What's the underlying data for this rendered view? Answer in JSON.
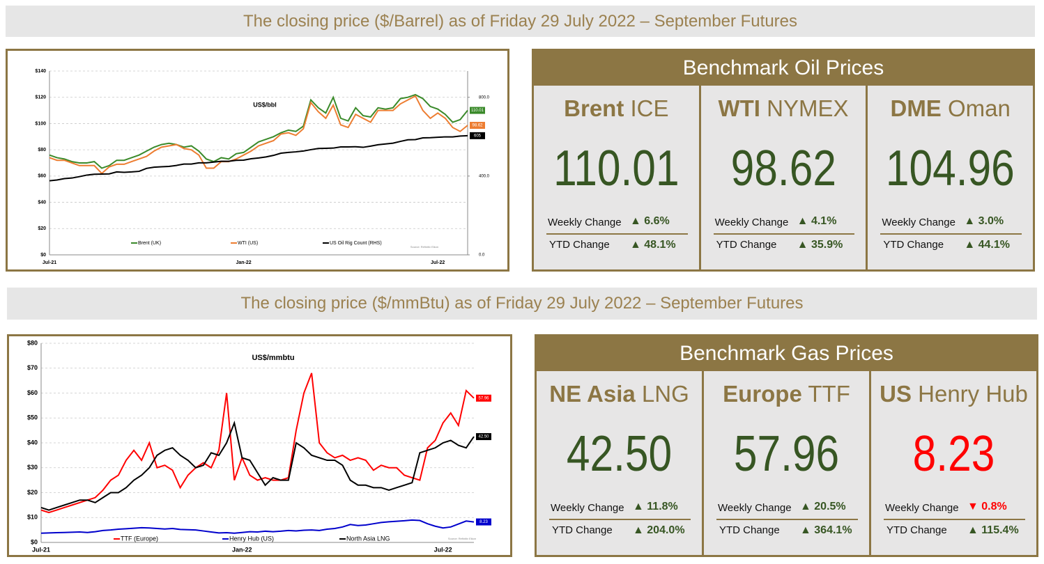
{
  "oil_section": {
    "heading": "The closing price ($/Barrel) as of Friday 29 July 2022 – September Futures",
    "panel": {
      "title": "Benchmark Oil Prices",
      "cells": [
        {
          "name_bold": "Brent",
          "name_rest": "ICE",
          "price": "110.01",
          "price_color": "#375623",
          "weekly_label": "Weekly Change",
          "weekly_change": "▲ 6.6%",
          "weekly_color": "#375623",
          "ytd_label": "YTD Change",
          "ytd_change": "▲ 48.1%",
          "ytd_color": "#375623"
        },
        {
          "name_bold": "WTI",
          "name_rest": "NYMEX",
          "price": "98.62",
          "price_color": "#375623",
          "weekly_label": "Weekly Change",
          "weekly_change": "▲ 4.1%",
          "weekly_color": "#375623",
          "ytd_label": "YTD Change",
          "ytd_change": "▲ 35.9%",
          "ytd_color": "#375623"
        },
        {
          "name_bold": "DME",
          "name_rest": "Oman",
          "price": "104.96",
          "price_color": "#375623",
          "weekly_label": "Weekly Change",
          "weekly_change": "▲ 3.0%",
          "weekly_color": "#375623",
          "ytd_label": "YTD Change",
          "ytd_change": "▲ 44.1%",
          "ytd_color": "#375623"
        }
      ]
    }
  },
  "gas_section": {
    "heading": "The closing price ($/mmBtu) as of Friday 29 July 2022 – September Futures",
    "panel": {
      "title": "Benchmark Gas Prices",
      "cells": [
        {
          "name_bold": "NE Asia",
          "name_rest": "LNG",
          "price": "42.50",
          "price_color": "#375623",
          "weekly_label": "Weekly Change",
          "weekly_change": "▲ 11.8%",
          "weekly_color": "#375623",
          "ytd_label": "YTD Change",
          "ytd_change": "▲ 204.0%",
          "ytd_color": "#375623"
        },
        {
          "name_bold": "Europe",
          "name_rest": "TTF",
          "price": "57.96",
          "price_color": "#375623",
          "weekly_label": "Weekly Change",
          "weekly_change": "▲ 20.5%",
          "weekly_color": "#375623",
          "ytd_label": "YTD Change",
          "ytd_change": "▲ 364.1%",
          "ytd_color": "#375623"
        },
        {
          "name_bold": "US",
          "name_rest": "Henry Hub",
          "price": "8.23",
          "price_color": "#ff0000",
          "weekly_label": "Weekly Change",
          "weekly_change": "▼ 0.8%",
          "weekly_color": "#ff0000",
          "ytd_label": "YTD Change",
          "ytd_change": "▲ 115.4%",
          "ytd_color": "#375623"
        }
      ]
    }
  },
  "chart_data": [
    {
      "type": "line",
      "annotation": "US$/bbl",
      "source": "Source: Refinitiv Eikon",
      "grid": true,
      "legend": "bottom",
      "categories": [
        "Jul-21",
        null,
        null,
        null,
        null,
        null,
        null,
        null,
        null,
        null,
        null,
        null,
        null,
        null,
        null,
        null,
        null,
        null,
        null,
        null,
        null,
        null,
        null,
        null,
        null,
        null,
        "Jan-22",
        null,
        null,
        null,
        null,
        null,
        null,
        null,
        null,
        null,
        null,
        null,
        null,
        null,
        null,
        null,
        null,
        null,
        null,
        null,
        null,
        null,
        null,
        null,
        null,
        null,
        "Jul-22",
        null,
        null,
        null,
        null
      ],
      "series": [
        {
          "name": "Brent (UK)",
          "color": "#3a8a2a",
          "values": [
            76,
            74,
            73,
            71,
            70,
            70,
            71,
            66,
            68,
            72,
            72,
            74,
            76,
            79,
            82,
            84,
            85,
            84,
            82,
            83,
            79,
            73,
            71,
            74,
            73,
            77,
            78,
            82,
            86,
            88,
            90,
            93,
            95,
            94,
            98,
            118,
            112,
            108,
            120,
            104,
            102,
            112,
            106,
            105,
            112,
            111,
            112,
            119,
            120,
            122,
            119,
            113,
            111,
            107,
            101,
            103,
            110.01
          ]
        },
        {
          "name": "WTI (US)",
          "color": "#ed7d31",
          "values": [
            74,
            72,
            72,
            70,
            68,
            68,
            68,
            62,
            67,
            69,
            69,
            71,
            73,
            75,
            79,
            82,
            83,
            84,
            81,
            80,
            76,
            66,
            66,
            71,
            71,
            73,
            76,
            79,
            83,
            85,
            87,
            92,
            93,
            91,
            96,
            116,
            109,
            104,
            114,
            99,
            97,
            107,
            104,
            101,
            110,
            110,
            110,
            115,
            118,
            121,
            110,
            104,
            108,
            104,
            97,
            94,
            98.62
          ]
        },
        {
          "name": "US Oil Rig Count (RHS)",
          "color": "#000000",
          "axis": "y2",
          "values": [
            376,
            380,
            387,
            390,
            397,
            405,
            409,
            410,
            411,
            421,
            419,
            421,
            424,
            439,
            445,
            447,
            449,
            454,
            461,
            461,
            467,
            467,
            471,
            475,
            475,
            480,
            481,
            488,
            492,
            497,
            505,
            516,
            520,
            523,
            527,
            534,
            540,
            541,
            542,
            548,
            548,
            549,
            546,
            552,
            559,
            563,
            567,
            576,
            584,
            585,
            594,
            595,
            597,
            599,
            599,
            603,
            605
          ]
        }
      ],
      "ylim": [
        0,
        140
      ],
      "yticks": [
        {
          "value": 0,
          "label": "$0"
        },
        {
          "value": 20,
          "label": "$20"
        },
        {
          "value": 40,
          "label": "$40"
        },
        {
          "value": 60,
          "label": "$60"
        },
        {
          "value": 80,
          "label": "$80"
        },
        {
          "value": 100,
          "label": "$100"
        },
        {
          "value": 120,
          "label": "$120"
        },
        {
          "value": 140,
          "label": "$140"
        }
      ],
      "y2lim": [
        0,
        933.3
      ],
      "y2ticks": [
        {
          "value": 0,
          "label": "0.0"
        },
        {
          "value": 400,
          "label": "400.0"
        },
        {
          "value": 800,
          "label": "800.0"
        }
      ]
    },
    {
      "type": "line",
      "annotation": "US$/mmbtu",
      "source": "Source: Refinitiv Eikon",
      "grid": true,
      "legend": "bottom",
      "categories": [
        "Jul-21",
        null,
        null,
        null,
        null,
        null,
        null,
        null,
        null,
        null,
        null,
        null,
        null,
        null,
        null,
        null,
        null,
        null,
        null,
        null,
        null,
        null,
        null,
        null,
        null,
        null,
        "Jan-22",
        null,
        null,
        null,
        null,
        null,
        null,
        null,
        null,
        null,
        null,
        null,
        null,
        null,
        null,
        null,
        null,
        null,
        null,
        null,
        null,
        null,
        null,
        null,
        null,
        null,
        "Jul-22",
        null,
        null,
        null,
        null
      ],
      "series": [
        {
          "name": "TTF (Europe)",
          "color": "#ff0000",
          "values": [
            13,
            12,
            13,
            14,
            15,
            16,
            17,
            18,
            21,
            25,
            27,
            33,
            37,
            33,
            40,
            30,
            31,
            29,
            22,
            27,
            30,
            32,
            30,
            37,
            60,
            25,
            34,
            27,
            25,
            26,
            25,
            25,
            26,
            45,
            60,
            68,
            40,
            36,
            34,
            35,
            33,
            34,
            33,
            29,
            31,
            30,
            30,
            27,
            26,
            25,
            38,
            41,
            48,
            52,
            47,
            61,
            57.96
          ]
        },
        {
          "name": "Henry Hub (US)",
          "color": "#0000cc",
          "values": [
            3.7,
            3.8,
            3.9,
            4.0,
            4.1,
            4.2,
            4.0,
            4.3,
            4.8,
            5.0,
            5.3,
            5.5,
            5.7,
            5.9,
            5.8,
            5.6,
            5.4,
            5.6,
            5.2,
            5.1,
            5.0,
            4.6,
            4.2,
            3.8,
            3.9,
            3.7,
            4.0,
            4.3,
            4.2,
            4.5,
            4.3,
            4.5,
            4.8,
            4.6,
            4.9,
            5.0,
            4.8,
            5.3,
            5.6,
            6.2,
            7.2,
            6.8,
            7.0,
            7.5,
            8.0,
            8.3,
            8.5,
            8.7,
            9.0,
            8.8,
            7.5,
            6.5,
            5.8,
            6.2,
            7.4,
            8.6,
            8.23
          ]
        },
        {
          "name": "North Asia LNG",
          "color": "#000000",
          "values": [
            14,
            13,
            14,
            15,
            16,
            17,
            17,
            16,
            18,
            20,
            20,
            22,
            25,
            27,
            30,
            35,
            37,
            38,
            35,
            33,
            30,
            31,
            36,
            35,
            40,
            48,
            34,
            33,
            28,
            23,
            26,
            25,
            25,
            40,
            38,
            35,
            34,
            33,
            33,
            31,
            25,
            23,
            23,
            22,
            22,
            21,
            22,
            23,
            24,
            36,
            37,
            38,
            40,
            41,
            39,
            38,
            42.5
          ],
          "value_labels": [
            null,
            null,
            null,
            null,
            null,
            null,
            null,
            null,
            null,
            null,
            null,
            null,
            null,
            null,
            null,
            null,
            null,
            null,
            null,
            null,
            null,
            null,
            null,
            null,
            null,
            null,
            null,
            null,
            null,
            null,
            null,
            null,
            null,
            null,
            null,
            null,
            null,
            null,
            null,
            null,
            null,
            null,
            null,
            null,
            null,
            null,
            null,
            null,
            null,
            null,
            null,
            null,
            null,
            null,
            null,
            null,
            "42.50"
          ]
        }
      ],
      "ylim": [
        0,
        80
      ],
      "yticks": [
        {
          "value": 0,
          "label": "$0"
        },
        {
          "value": 10,
          "label": "$10"
        },
        {
          "value": 20,
          "label": "$20"
        },
        {
          "value": 30,
          "label": "$30"
        },
        {
          "value": 40,
          "label": "$40"
        },
        {
          "value": 50,
          "label": "$50"
        },
        {
          "value": 60,
          "label": "$60"
        },
        {
          "value": 70,
          "label": "$70"
        },
        {
          "value": 80,
          "label": "$80"
        }
      ]
    }
  ]
}
